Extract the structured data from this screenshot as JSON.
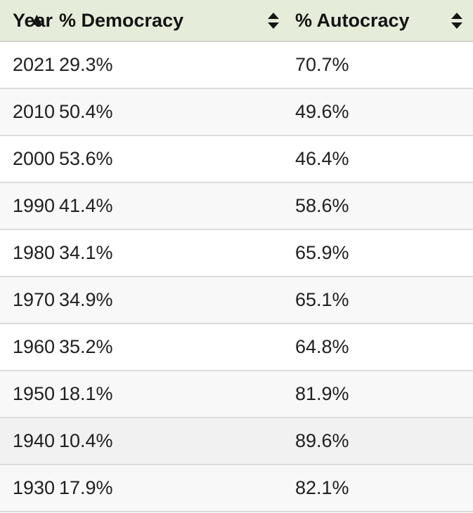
{
  "header": {
    "year": {
      "label": "Year",
      "sort_state": "sorted",
      "icon": "sort-ascending-arrow"
    },
    "democracy": {
      "label": "% Democracy",
      "sort_state": "unsorted",
      "icon": "sort-both-arrows"
    },
    "autocracy": {
      "label": "% Autocracy",
      "sort_state": "unsorted",
      "icon": "sort-both-arrows"
    }
  },
  "rows": [
    {
      "year": "2021",
      "democracy": "29.3%",
      "autocracy": "70.7%"
    },
    {
      "year": "2010",
      "democracy": "50.4%",
      "autocracy": "49.6%"
    },
    {
      "year": "2000",
      "democracy": "53.6%",
      "autocracy": "46.4%"
    },
    {
      "year": "1990",
      "democracy": "41.4%",
      "autocracy": "58.6%"
    },
    {
      "year": "1980",
      "democracy": "34.1%",
      "autocracy": "65.9%"
    },
    {
      "year": "1970",
      "democracy": "34.9%",
      "autocracy": "65.1%"
    },
    {
      "year": "1960",
      "democracy": "35.2%",
      "autocracy": "64.8%"
    },
    {
      "year": "1950",
      "democracy": "18.1%",
      "autocracy": "81.9%"
    },
    {
      "year": "1940",
      "democracy": "10.4%",
      "autocracy": "89.6%",
      "highlighted": true
    },
    {
      "year": "1930",
      "democracy": "17.9%",
      "autocracy": "82.1%"
    }
  ],
  "icons": {
    "year_sort": "▲"
  },
  "colors": {
    "header_bg": "#e5edda",
    "row_bg": "#ffffff",
    "row_alt_bg": "#f8f8f8",
    "row_highlight_bg": "#f1f1f1",
    "divider": "#dcdcdc",
    "text": "#1d1d1d"
  },
  "chart_data": {
    "type": "table",
    "columns": [
      "Year",
      "% Democracy",
      "% Autocracy"
    ],
    "rows": [
      [
        2021,
        29.3,
        70.7
      ],
      [
        2010,
        50.4,
        49.6
      ],
      [
        2000,
        53.6,
        46.4
      ],
      [
        1990,
        41.4,
        58.6
      ],
      [
        1980,
        34.1,
        65.9
      ],
      [
        1970,
        34.9,
        65.1
      ],
      [
        1960,
        35.2,
        64.8
      ],
      [
        1950,
        18.1,
        81.9
      ],
      [
        1940,
        10.4,
        89.6
      ],
      [
        1930,
        17.9,
        82.1
      ]
    ],
    "sorted_column": "Year",
    "sort_indicator": "up-arrow",
    "highlighted_row_year": 1940
  }
}
